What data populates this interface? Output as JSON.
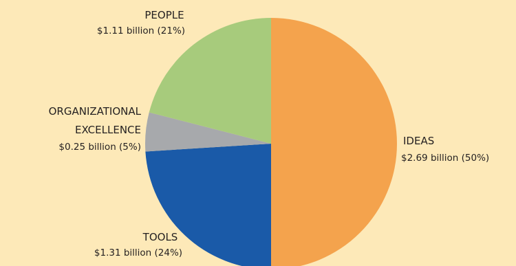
{
  "chart_data": {
    "type": "pie",
    "title": "",
    "slices": [
      {
        "name": "IDEAS",
        "value": 2.69,
        "percent": 50,
        "label": "$2.69 billion (50%)",
        "color": "#f4a34d"
      },
      {
        "name": "TOOLS",
        "value": 1.31,
        "percent": 24,
        "label": "$1.31 billion (24%)",
        "color": "#1a5aa8"
      },
      {
        "name": "ORGANIZATIONAL EXCELLENCE",
        "name_lines": [
          "ORGANIZATIONAL",
          "EXCELLENCE"
        ],
        "value": 0.25,
        "percent": 5,
        "label": "$0.25 billion (5%)",
        "color": "#a7a9ac"
      },
      {
        "name": "PEOPLE",
        "value": 1.11,
        "percent": 21,
        "label": "$1.11 billion (21%)",
        "color": "#a7cb7c"
      }
    ],
    "start": "top",
    "direction": "clockwise",
    "legend": "none"
  },
  "colors": {
    "background": "#fde9b8",
    "text": "#231f20"
  }
}
